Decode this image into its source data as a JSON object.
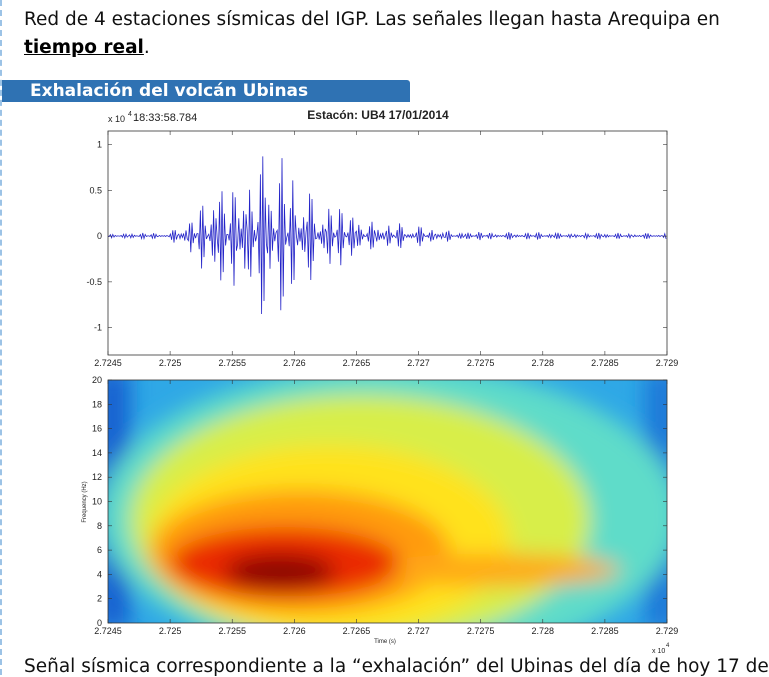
{
  "intro": {
    "text": "Red de 4 estaciones sísmicas del IGP. Las señales llegan hasta Arequipa en ",
    "link": "tiempo real",
    "end": "."
  },
  "section": {
    "title": "Exhalación del volcán Ubinas"
  },
  "figure": {
    "multiplier": "x 10",
    "exponent": "4",
    "seismogram": {
      "title": "Estacón: UB4 17/01/2014",
      "start_time": "18:33:58.784",
      "xlim": [
        2.7245,
        2.729
      ],
      "xticks": [
        2.7245,
        2.725,
        2.7255,
        2.726,
        2.7265,
        2.727,
        2.7275,
        2.728,
        2.7285,
        2.729
      ],
      "ylim": [
        -1.3,
        1.15
      ],
      "yticks": [
        -1,
        -0.5,
        0,
        0.5,
        1
      ]
    },
    "spectrogram": {
      "xlabel": "Time (s)",
      "ylabel": "Frequency (Hz)",
      "xlim": [
        2.7245,
        2.729
      ],
      "xticks": [
        2.7245,
        2.725,
        2.7255,
        2.726,
        2.7265,
        2.727,
        2.7275,
        2.728,
        2.7285,
        2.729
      ],
      "ylim": [
        0,
        20
      ],
      "yticks": [
        0,
        2,
        4,
        6,
        8,
        10,
        12,
        14,
        16,
        18,
        20
      ]
    }
  },
  "caption": "Señal sísmica correspondiente a la “exhalación” del Ubinas del día de hoy 17 de"
}
